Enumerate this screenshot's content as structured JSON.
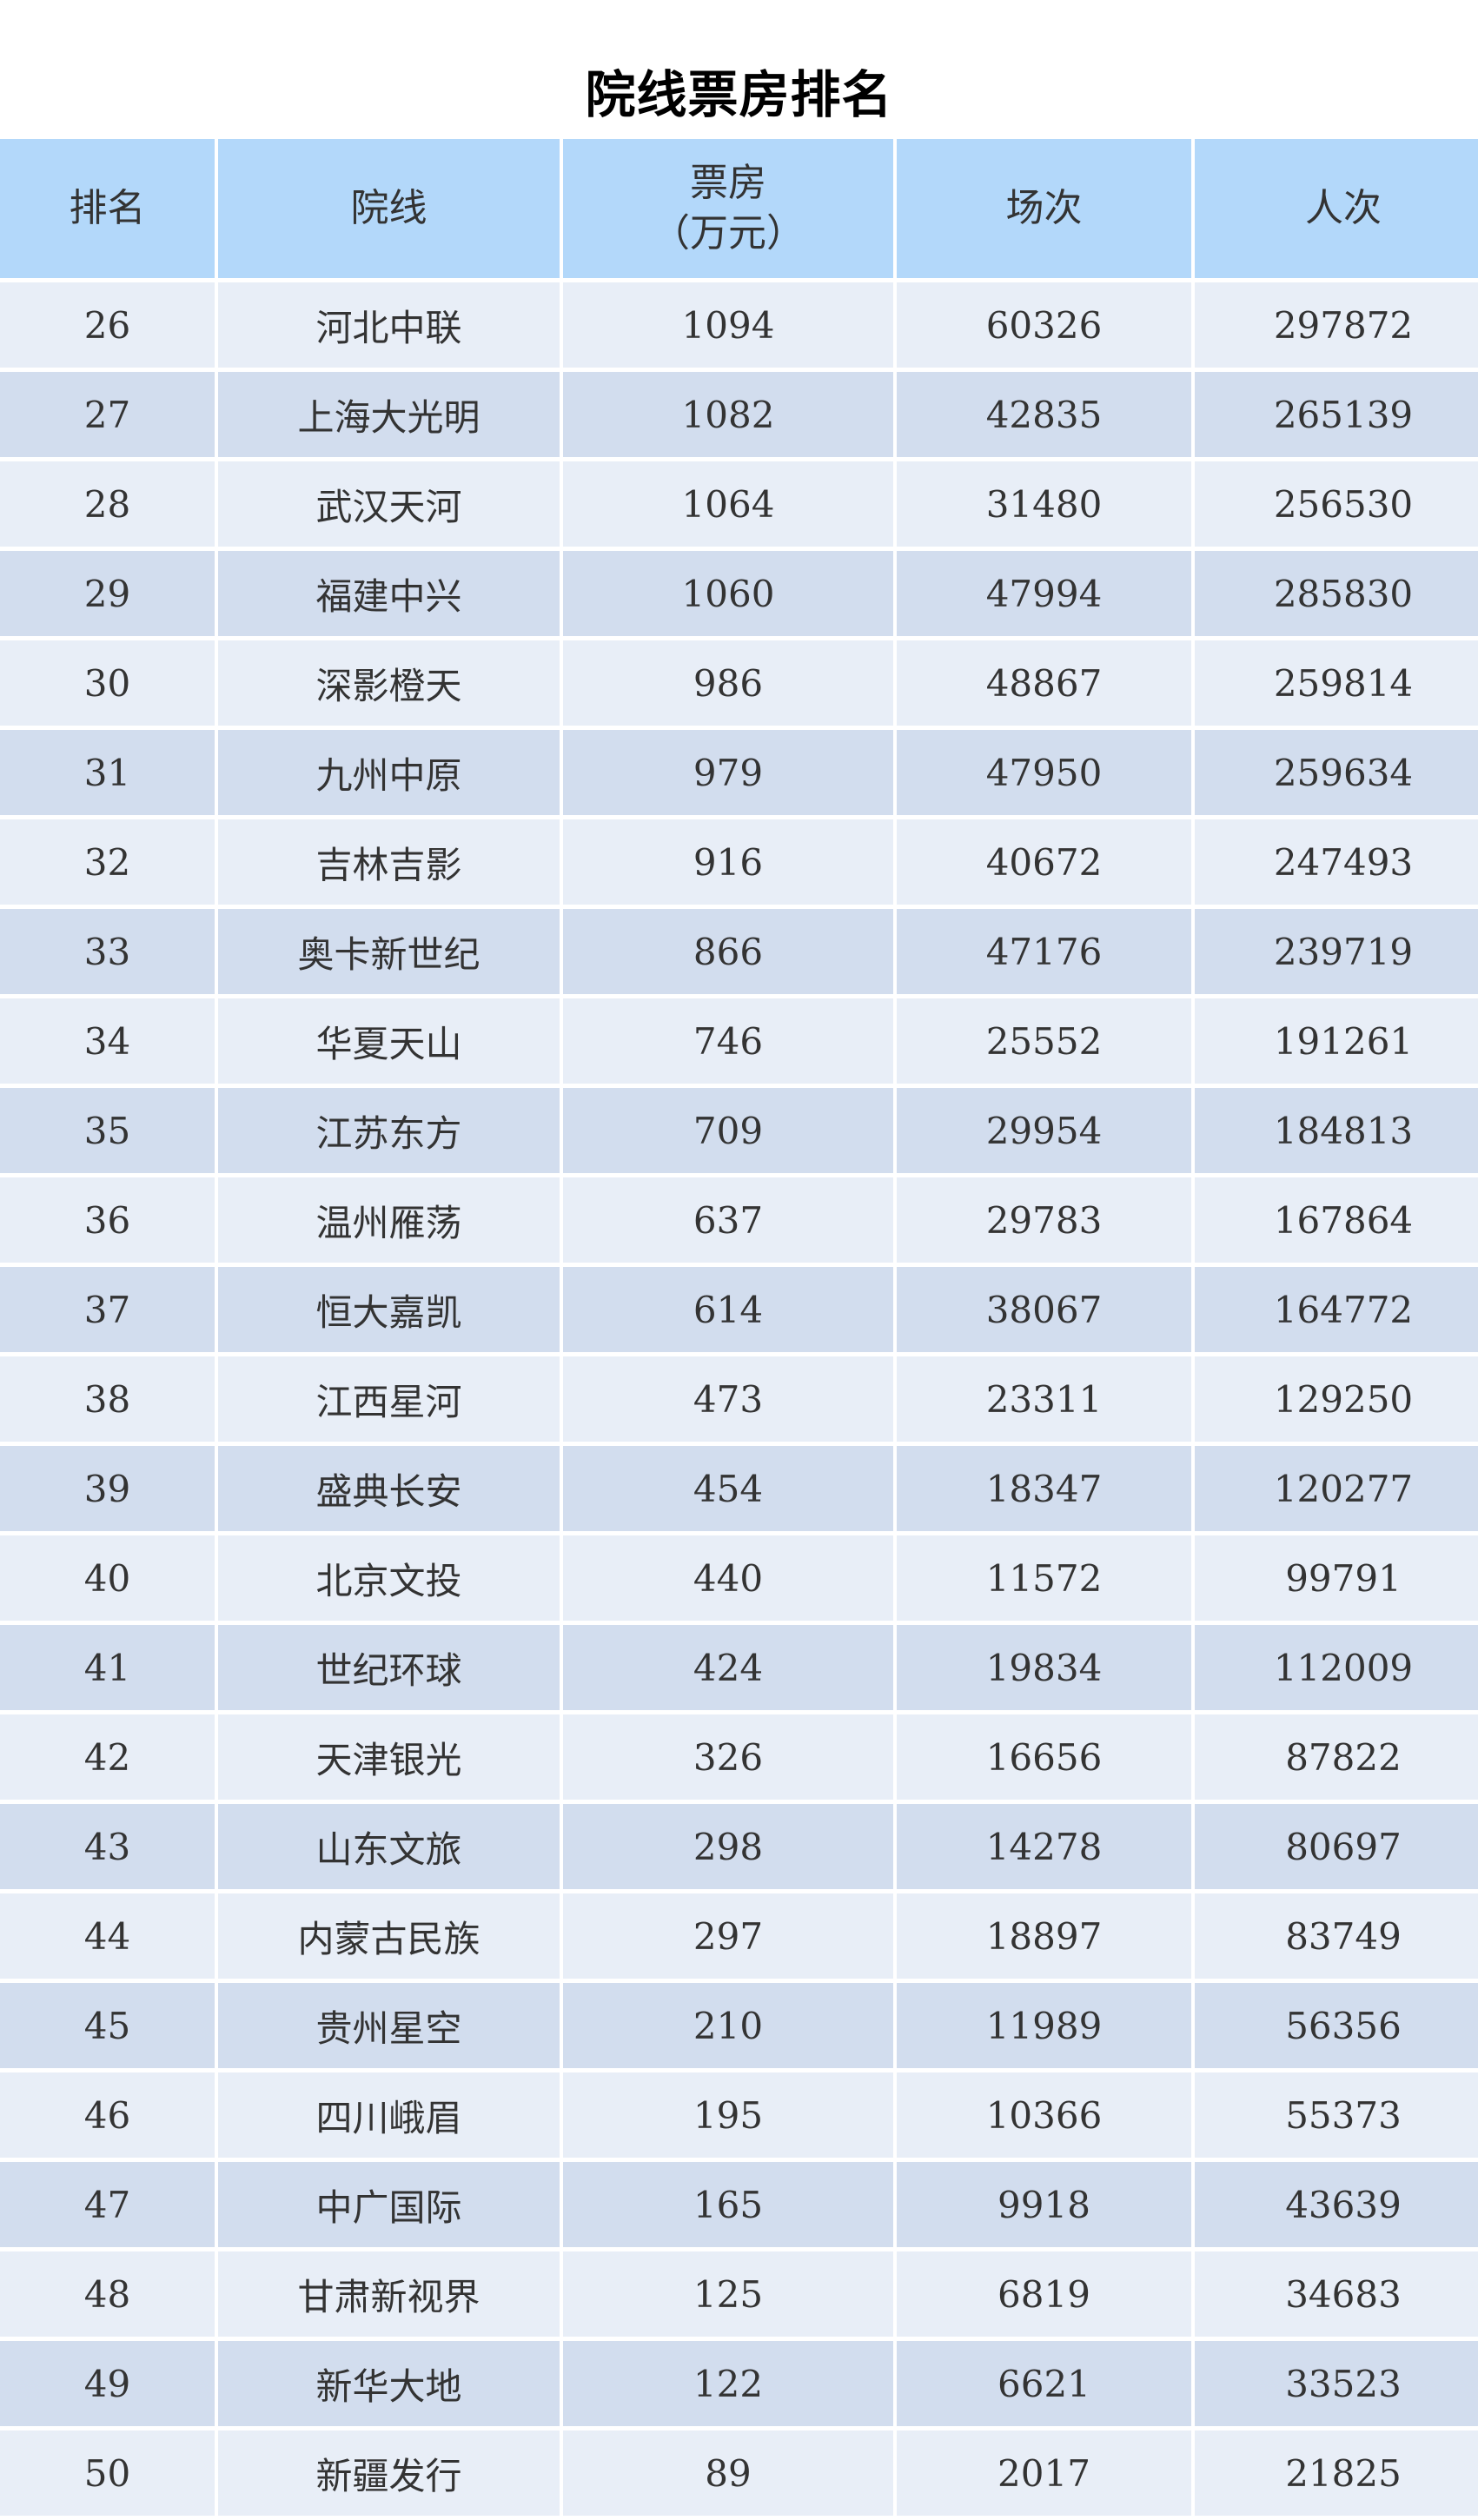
{
  "title": "院线票房排名",
  "columns": [
    "排名",
    "院线",
    "票房",
    "（万元）",
    "场次",
    "人次"
  ],
  "rows": [
    [
      "26",
      "河北中联",
      "1094",
      "60326",
      "297872"
    ],
    [
      "27",
      "上海大光明",
      "1082",
      "42835",
      "265139"
    ],
    [
      "28",
      "武汉天河",
      "1064",
      "31480",
      "256530"
    ],
    [
      "29",
      "福建中兴",
      "1060",
      "47994",
      "285830"
    ],
    [
      "30",
      "深影橙天",
      "986",
      "48867",
      "259814"
    ],
    [
      "31",
      "九州中原",
      "979",
      "47950",
      "259634"
    ],
    [
      "32",
      "吉林吉影",
      "916",
      "40672",
      "247493"
    ],
    [
      "33",
      "奥卡新世纪",
      "866",
      "47176",
      "239719"
    ],
    [
      "34",
      "华夏天山",
      "746",
      "25552",
      "191261"
    ],
    [
      "35",
      "江苏东方",
      "709",
      "29954",
      "184813"
    ],
    [
      "36",
      "温州雁荡",
      "637",
      "29783",
      "167864"
    ],
    [
      "37",
      "恒大嘉凯",
      "614",
      "38067",
      "164772"
    ],
    [
      "38",
      "江西星河",
      "473",
      "23311",
      "129250"
    ],
    [
      "39",
      "盛典长安",
      "454",
      "18347",
      "120277"
    ],
    [
      "40",
      "北京文投",
      "440",
      "11572",
      "99791"
    ],
    [
      "41",
      "世纪环球",
      "424",
      "19834",
      "112009"
    ],
    [
      "42",
      "天津银光",
      "326",
      "16656",
      "87822"
    ],
    [
      "43",
      "山东文旅",
      "298",
      "14278",
      "80697"
    ],
    [
      "44",
      "内蒙古民族",
      "297",
      "18897",
      "83749"
    ],
    [
      "45",
      "贵州星空",
      "210",
      "11989",
      "56356"
    ],
    [
      "46",
      "四川峨眉",
      "195",
      "10366",
      "55373"
    ],
    [
      "47",
      "中广国际",
      "165",
      "9918",
      "43639"
    ],
    [
      "48",
      "甘肃新视界",
      "125",
      "6819",
      "34683"
    ],
    [
      "49",
      "新华大地",
      "122",
      "6621",
      "33523"
    ],
    [
      "50",
      "新疆发行",
      "89",
      "2017",
      "21825"
    ]
  ],
  "colors": {
    "header": "#b3d8fa",
    "row_odd": "#e8eef7",
    "row_even": "#d2ddee"
  }
}
